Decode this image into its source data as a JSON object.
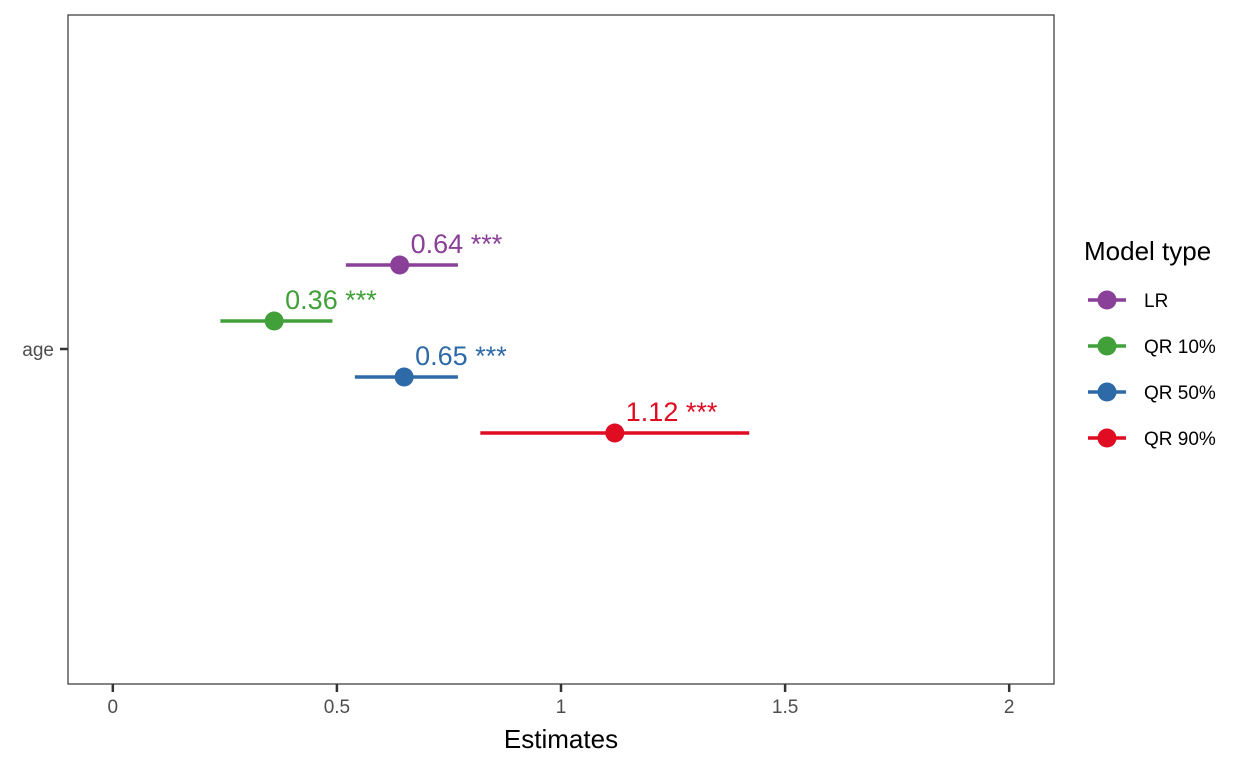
{
  "chart_data": {
    "type": "forest",
    "title": "",
    "xlabel": "Estimates",
    "ylabel": "",
    "term": "age",
    "xlim": [
      -0.1,
      2.1
    ],
    "xticks": [
      {
        "value": 0,
        "label": "0"
      },
      {
        "value": 0.5,
        "label": "0.5"
      },
      {
        "value": 1,
        "label": "1"
      },
      {
        "value": 1.5,
        "label": "1.5"
      },
      {
        "value": 2,
        "label": "2"
      }
    ],
    "grid": false,
    "legend": {
      "title": "Model type",
      "position": "right"
    },
    "series": [
      {
        "name": "LR",
        "color": "#8a3f98",
        "estimate": 0.64,
        "ci_low": 0.52,
        "ci_high": 0.77,
        "label": "0.64 ***"
      },
      {
        "name": "QR 10%",
        "color": "#41a03a",
        "estimate": 0.36,
        "ci_low": 0.24,
        "ci_high": 0.49,
        "label": "0.36 ***"
      },
      {
        "name": "QR 50%",
        "color": "#2e6aa8",
        "estimate": 0.65,
        "ci_low": 0.54,
        "ci_high": 0.77,
        "label": "0.65 ***"
      },
      {
        "name": "QR 90%",
        "color": "#df0c22",
        "estimate": 1.12,
        "ci_low": 0.82,
        "ci_high": 1.42,
        "label": "1.12 ***"
      }
    ]
  }
}
